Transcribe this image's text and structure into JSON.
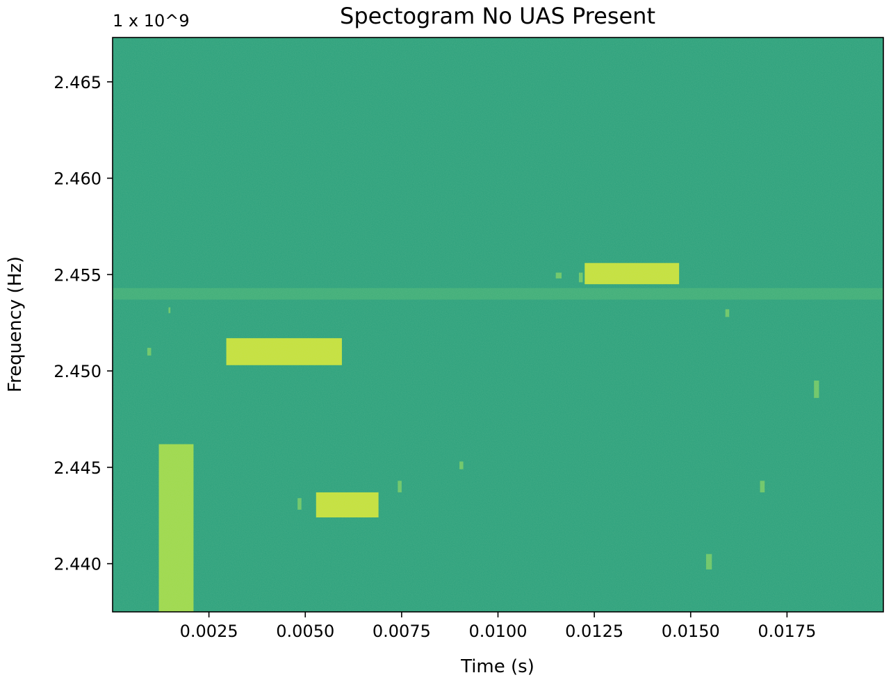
{
  "chart_data": {
    "type": "heatmap",
    "title": "Spectogram No UAS Present",
    "xlabel": "Time (s)",
    "ylabel": "Frequency (Hz)",
    "y_offset_label": "1 x 10^9",
    "xlim": [
      0.0,
      0.02
    ],
    "ylim": [
      2.4375,
      2.4673
    ],
    "x_ticks": [
      0.0025,
      0.005,
      0.0075,
      0.01,
      0.0125,
      0.015,
      0.0175
    ],
    "x_tick_labels": [
      "0.0025",
      "0.0050",
      "0.0075",
      "0.0100",
      "0.0125",
      "0.0150",
      "0.0175"
    ],
    "y_ticks": [
      2.44,
      2.445,
      2.45,
      2.455,
      2.46,
      2.465
    ],
    "y_tick_labels": [
      "2.440",
      "2.445",
      "2.450",
      "2.455",
      "2.460",
      "2.465"
    ],
    "colors": {
      "background": "#2aa07c",
      "hband": "#4db874",
      "strong": "#c7e13a",
      "medium": "#9fd94a",
      "weak": "#6dc667"
    },
    "bursts": [
      {
        "t0": 0.00295,
        "t1": 0.00595,
        "f0": 2.4503,
        "f1": 2.4517,
        "level": "strong"
      },
      {
        "t0": 0.00528,
        "t1": 0.0069,
        "f0": 2.4424,
        "f1": 2.4437,
        "level": "strong"
      },
      {
        "t0": 0.01225,
        "t1": 0.0147,
        "f0": 2.4545,
        "f1": 2.4556,
        "level": "strong"
      },
      {
        "t0": 0.0012,
        "t1": 0.0021,
        "f0": 2.4375,
        "f1": 2.4462,
        "level": "medium"
      },
      {
        "t0": 0.0009,
        "t1": 0.001,
        "f0": 2.4508,
        "f1": 2.4512,
        "level": "weak"
      },
      {
        "t0": 0.00145,
        "t1": 0.0015,
        "f0": 2.453,
        "f1": 2.4533,
        "level": "weak"
      },
      {
        "t0": 0.0048,
        "t1": 0.0049,
        "f0": 2.4428,
        "f1": 2.4434,
        "level": "weak"
      },
      {
        "t0": 0.0074,
        "t1": 0.0075,
        "f0": 2.4437,
        "f1": 2.4443,
        "level": "weak"
      },
      {
        "t0": 0.009,
        "t1": 0.0091,
        "f0": 2.4449,
        "f1": 2.4453,
        "level": "weak"
      },
      {
        "t0": 0.0115,
        "t1": 0.01165,
        "f0": 2.4548,
        "f1": 2.4551,
        "level": "weak"
      },
      {
        "t0": 0.0121,
        "t1": 0.0122,
        "f0": 2.4546,
        "f1": 2.4551,
        "level": "weak"
      },
      {
        "t0": 0.0154,
        "t1": 0.01555,
        "f0": 2.4397,
        "f1": 2.4405,
        "level": "weak"
      },
      {
        "t0": 0.0159,
        "t1": 0.016,
        "f0": 2.4528,
        "f1": 2.4532,
        "level": "weak"
      },
      {
        "t0": 0.0168,
        "t1": 0.01692,
        "f0": 2.4437,
        "f1": 2.4443,
        "level": "weak"
      },
      {
        "t0": 0.0182,
        "t1": 0.01833,
        "f0": 2.4486,
        "f1": 2.4495,
        "level": "weak"
      }
    ],
    "grid": false,
    "legend": "none"
  }
}
